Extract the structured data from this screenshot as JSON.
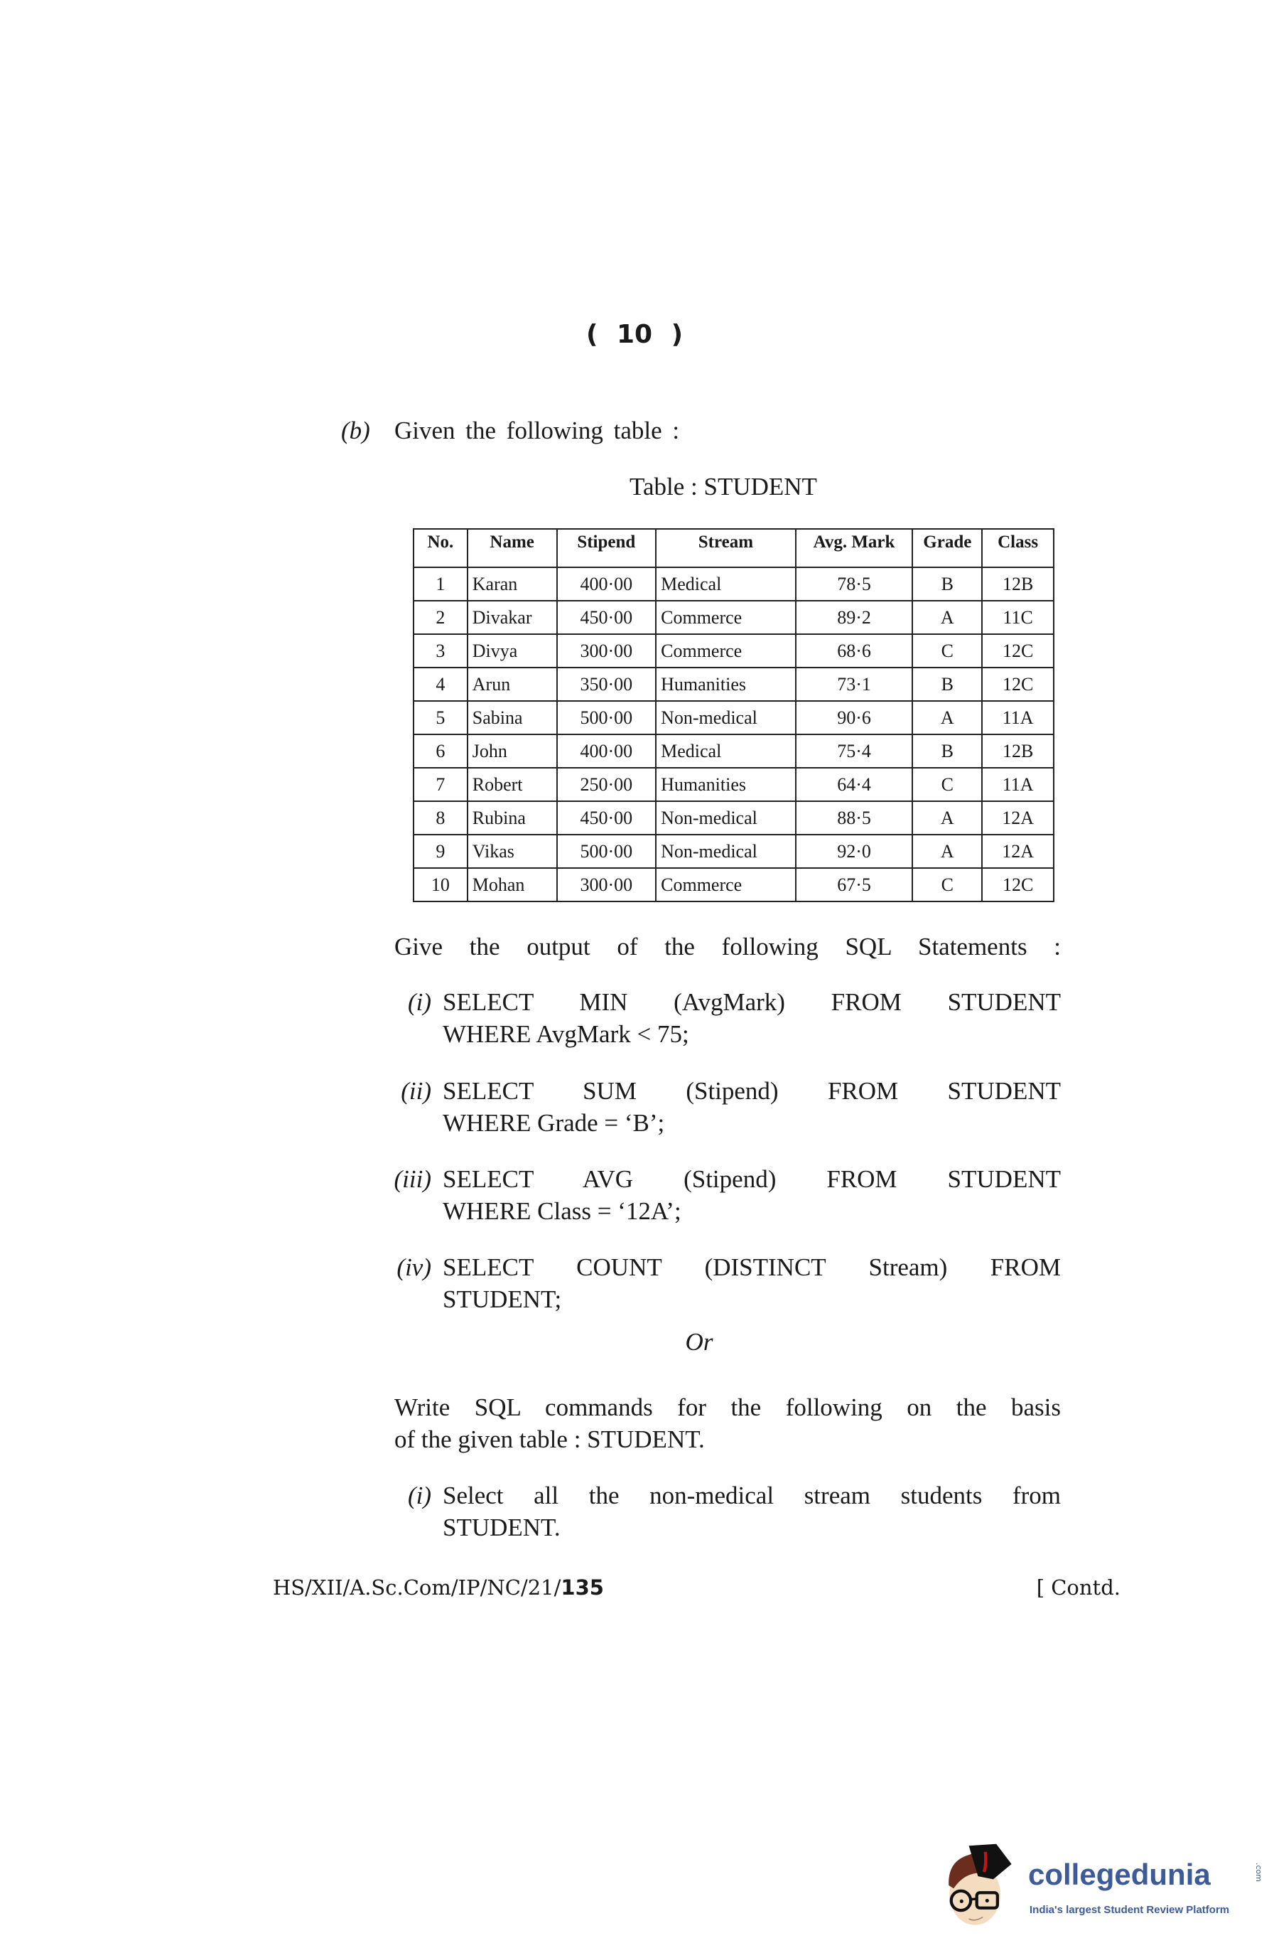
{
  "page_number": "( 10 )",
  "question": {
    "label": "(b)",
    "intro": "Given the following table :",
    "table_title": "Table : STUDENT",
    "table": {
      "headers": [
        "No.",
        "Name",
        "Stipend",
        "Stream",
        "Avg. Mark",
        "Grade",
        "Class"
      ],
      "rows": [
        [
          "1",
          "Karan",
          "400·00",
          "Medical",
          "78·5",
          "B",
          "12B"
        ],
        [
          "2",
          "Divakar",
          "450·00",
          "Commerce",
          "89·2",
          "A",
          "11C"
        ],
        [
          "3",
          "Divya",
          "300·00",
          "Commerce",
          "68·6",
          "C",
          "12C"
        ],
        [
          "4",
          "Arun",
          "350·00",
          "Humanities",
          "73·1",
          "B",
          "12C"
        ],
        [
          "5",
          "Sabina",
          "500·00",
          "Non-medical",
          "90·6",
          "A",
          "11A"
        ],
        [
          "6",
          "John",
          "400·00",
          "Medical",
          "75·4",
          "B",
          "12B"
        ],
        [
          "7",
          "Robert",
          "250·00",
          "Humanities",
          "64·4",
          "C",
          "11A"
        ],
        [
          "8",
          "Rubina",
          "450·00",
          "Non-medical",
          "88·5",
          "A",
          "12A"
        ],
        [
          "9",
          "Vikas",
          "500·00",
          "Non-medical",
          "92·0",
          "A",
          "12A"
        ],
        [
          "10",
          "Mohan",
          "300·00",
          "Commerce",
          "67·5",
          "C",
          "12C"
        ]
      ]
    },
    "output_prompt": "Give the output of the following SQL Statements :",
    "sql_items": [
      {
        "label": "(i)",
        "line1": "SELECT MIN (AvgMark) FROM STUDENT",
        "line2": "WHERE AvgMark < 75;"
      },
      {
        "label": "(ii)",
        "line1": "SELECT SUM (Stipend) FROM STUDENT",
        "line2": "WHERE Grade = ‘B’;"
      },
      {
        "label": "(iii)",
        "line1": "SELECT AVG (Stipend) FROM STUDENT",
        "line2": "WHERE Class = ‘12A’;"
      },
      {
        "label": "(iv)",
        "line1": "SELECT COUNT (DISTINCT Stream) FROM",
        "line2": "STUDENT;"
      }
    ],
    "or": "Or",
    "alt_prompt_line1": "Write SQL commands for the following on the basis",
    "alt_prompt_line2": "of the given table : STUDENT.",
    "alt_items": [
      {
        "label": "(i)",
        "line1": "Select all the non-medical stream students from",
        "line2": "STUDENT."
      }
    ]
  },
  "footer": {
    "code_prefix": "HS/XII/A.Sc.Com/IP/NC/21/",
    "code_suffix": "135",
    "contd": "[ Contd."
  },
  "logo": {
    "name": "collegedunia",
    "tld": ".com",
    "tagline": "India's largest Student Review Platform",
    "color": "#3d5a99"
  }
}
